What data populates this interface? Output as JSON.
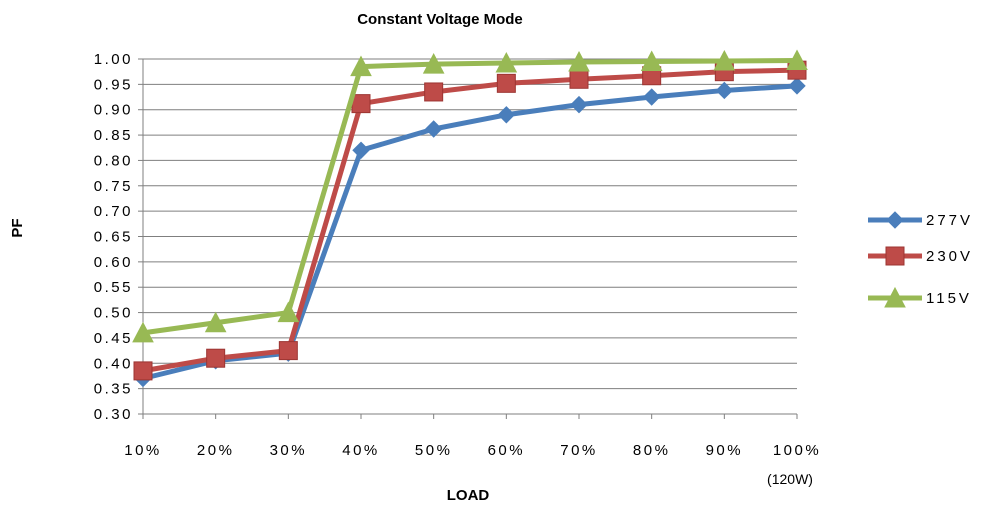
{
  "chart_data": {
    "type": "line",
    "title": "Constant Voltage Mode",
    "xlabel": "LOAD",
    "ylabel": "PF",
    "x_note": "(120W)",
    "categories": [
      "10%",
      "20%",
      "30%",
      "40%",
      "50%",
      "60%",
      "70%",
      "80%",
      "90%",
      "100%"
    ],
    "ylim": [
      0.3,
      1.0
    ],
    "y_ticks": [
      "0.30",
      "0.35",
      "0.40",
      "0.45",
      "0.50",
      "0.55",
      "0.60",
      "0.65",
      "0.70",
      "0.75",
      "0.80",
      "0.85",
      "0.90",
      "0.95",
      "1.00"
    ],
    "grid": true,
    "legend_position": "right",
    "series": [
      {
        "name": "277V",
        "marker": "diamond",
        "color": "#4A7EBB",
        "values": [
          0.37,
          0.405,
          0.42,
          0.82,
          0.862,
          0.89,
          0.91,
          0.925,
          0.938,
          0.947
        ]
      },
      {
        "name": "230V",
        "marker": "square",
        "color": "#BE4B48",
        "values": [
          0.385,
          0.41,
          0.425,
          0.912,
          0.935,
          0.952,
          0.96,
          0.967,
          0.975,
          0.978
        ]
      },
      {
        "name": "115V",
        "marker": "triangle",
        "color": "#98B954",
        "values": [
          0.46,
          0.48,
          0.5,
          0.985,
          0.99,
          0.992,
          0.994,
          0.995,
          0.996,
          0.997
        ]
      }
    ]
  }
}
